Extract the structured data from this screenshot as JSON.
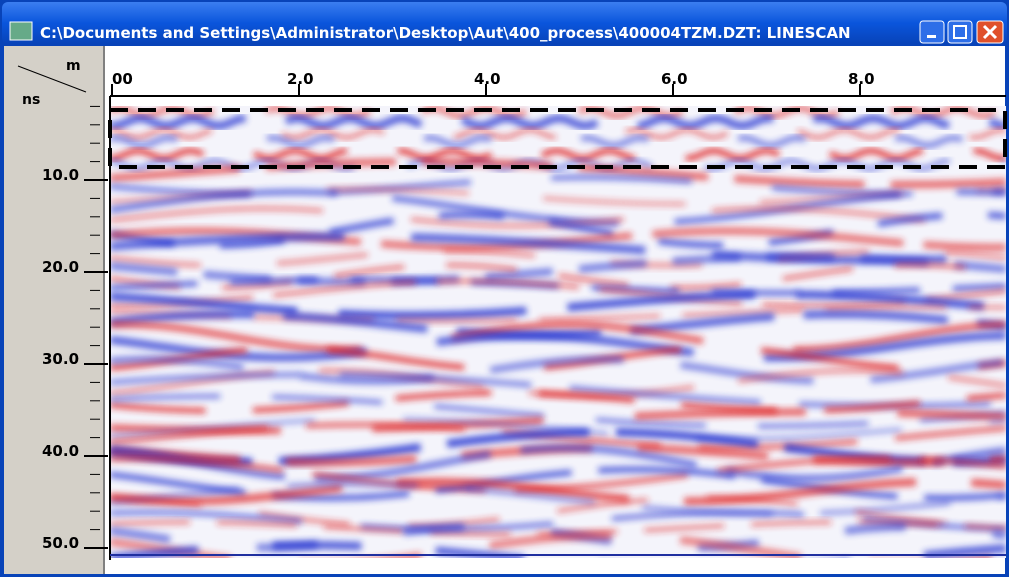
{
  "window": {
    "title": "C:\\Documents and Settings\\Administrator\\Desktop\\Aut\\400_process\\400004TZM.DZT:  LINESCAN"
  },
  "axes": {
    "x_unit": "m",
    "y_unit": "ns",
    "x_labels": [
      "00",
      "2.0",
      "4.0",
      "6.0",
      "8.0"
    ],
    "y_labels": [
      "10.0",
      "20.0",
      "30.0",
      "40.0",
      "50.0"
    ]
  }
}
